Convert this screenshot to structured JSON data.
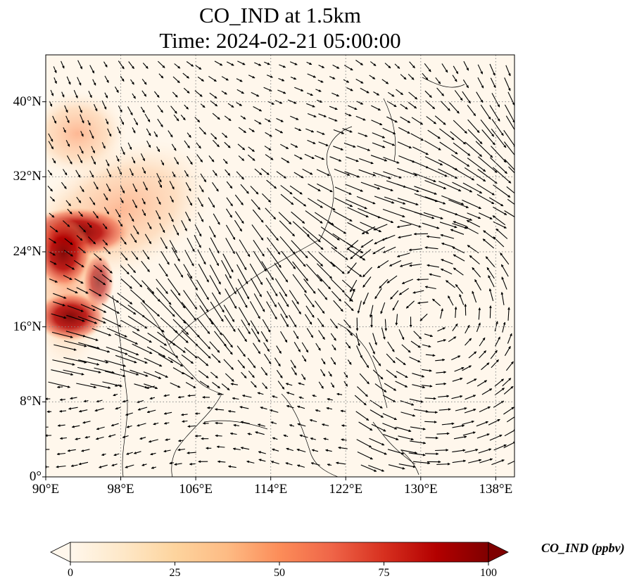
{
  "title": {
    "line1": "CO_IND at 1.5km",
    "line2": "Time: 2024-02-21 05:00:00"
  },
  "map": {
    "lon_range": [
      90,
      140
    ],
    "lat_range": [
      0,
      45
    ],
    "x_ticks": [
      "90°E",
      "98°E",
      "106°E",
      "114°E",
      "122°E",
      "130°E",
      "138°E"
    ],
    "y_ticks": [
      "0°",
      "8°N",
      "16°N",
      "24°N",
      "32°N",
      "40°N"
    ],
    "gridlines": true,
    "background_color": "#fff7ec",
    "vectors": "wind vectors (black arrows)"
  },
  "colorbar": {
    "label": "CO_IND (ppbv)",
    "ticks": [
      "0",
      "25",
      "50",
      "75",
      "100"
    ],
    "range": [
      0,
      100
    ],
    "colormap": [
      "#fff7ec",
      "#fee8c8",
      "#fdd49e",
      "#fdbb84",
      "#fc8d59",
      "#ef6548",
      "#d7301f",
      "#b30000",
      "#7f0000"
    ],
    "extend": "both"
  }
}
